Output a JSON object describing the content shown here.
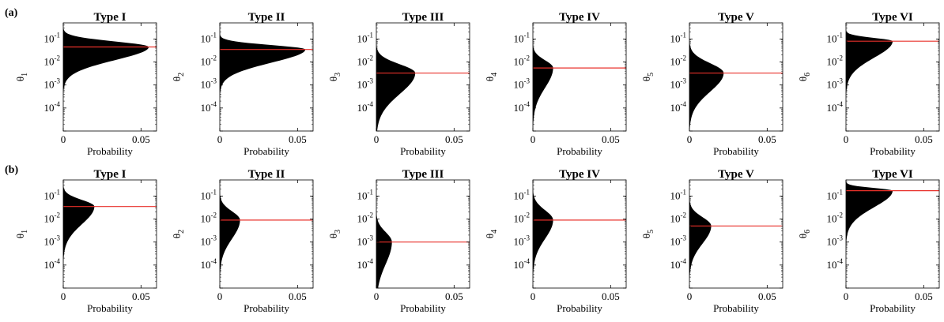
{
  "row_labels": [
    "(a)",
    "(b)"
  ],
  "chart_data": [
    {
      "row": "(a)",
      "type": "area",
      "title": "Type I",
      "ylabel_base": "θ",
      "ylabel_sub": "1",
      "xlabel": "Probability",
      "yscale": "log",
      "ylim": [
        1e-05,
        0.5
      ],
      "xlim": [
        0,
        0.06
      ],
      "xticks": [
        "0",
        "0.05"
      ],
      "yticks": [
        "10-1",
        "10-2",
        "10-3",
        "10-4"
      ],
      "mode": 0.045,
      "peak_probability": 0.055,
      "spread_decades": [
        1.2,
        0.5
      ],
      "marker_color": "#e8312a",
      "fill_color": "#000000"
    },
    {
      "row": "(a)",
      "type": "area",
      "title": "Type II",
      "ylabel_base": "θ",
      "ylabel_sub": "2",
      "xlabel": "Probability",
      "yscale": "log",
      "ylim": [
        1e-05,
        0.5
      ],
      "xlim": [
        0,
        0.06
      ],
      "xticks": [
        "0",
        "0.05"
      ],
      "yticks": [
        "10-1",
        "10-2",
        "10-3",
        "10-4"
      ],
      "mode": 0.035,
      "peak_probability": 0.055,
      "spread_decades": [
        1.2,
        0.4
      ],
      "marker_color": "#e8312a",
      "fill_color": "#000000"
    },
    {
      "row": "(a)",
      "type": "area",
      "title": "Type III",
      "ylabel_base": "θ",
      "ylabel_sub": "3",
      "xlabel": "Probability",
      "yscale": "log",
      "ylim": [
        1e-05,
        0.5
      ],
      "xlim": [
        0,
        0.06
      ],
      "xticks": [
        "0",
        "0.05"
      ],
      "yticks": [
        "10-1",
        "10-2",
        "10-3",
        "10-4"
      ],
      "mode": 0.0033,
      "peak_probability": 0.025,
      "spread_decades": [
        1.9,
        0.8
      ],
      "marker_color": "#e8312a",
      "fill_color": "#000000"
    },
    {
      "row": "(a)",
      "type": "area",
      "title": "Type IV",
      "ylabel_base": "θ",
      "ylabel_sub": "4",
      "xlabel": "Probability",
      "yscale": "log",
      "ylim": [
        1e-05,
        0.5
      ],
      "xlim": [
        0,
        0.06
      ],
      "xticks": [
        "0",
        "0.05"
      ],
      "yticks": [
        "10-1",
        "10-2",
        "10-3",
        "10-4"
      ],
      "mode": 0.0055,
      "peak_probability": 0.013,
      "spread_decades": [
        1.8,
        0.7
      ],
      "marker_color": "#e8312a",
      "fill_color": "#000000"
    },
    {
      "row": "(a)",
      "type": "area",
      "title": "Type V",
      "ylabel_base": "θ",
      "ylabel_sub": "5",
      "xlabel": "Probability",
      "yscale": "log",
      "ylim": [
        1e-05,
        0.5
      ],
      "xlim": [
        0,
        0.06
      ],
      "xticks": [
        "0",
        "0.05"
      ],
      "yticks": [
        "10-1",
        "10-2",
        "10-3",
        "10-4"
      ],
      "mode": 0.0033,
      "peak_probability": 0.022,
      "spread_decades": [
        1.7,
        0.9
      ],
      "marker_color": "#e8312a",
      "fill_color": "#000000"
    },
    {
      "row": "(a)",
      "type": "area",
      "title": "Type VI",
      "ylabel_base": "θ",
      "ylabel_sub": "6",
      "xlabel": "Probability",
      "yscale": "log",
      "ylim": [
        1e-05,
        0.5
      ],
      "xlim": [
        0,
        0.06
      ],
      "xticks": [
        "0",
        "0.05"
      ],
      "yticks": [
        "10-1",
        "10-2",
        "10-3",
        "10-4"
      ],
      "mode": 0.08,
      "peak_probability": 0.03,
      "spread_decades": [
        1.5,
        0.3
      ],
      "marker_color": "#e8312a",
      "fill_color": "#000000"
    },
    {
      "row": "(b)",
      "type": "area",
      "title": "Type I",
      "ylabel_base": "θ",
      "ylabel_sub": "1",
      "xlabel": "Probability",
      "yscale": "log",
      "ylim": [
        1e-05,
        0.5
      ],
      "xlim": [
        0,
        0.06
      ],
      "xticks": [
        "0",
        "0.05"
      ],
      "yticks": [
        "10-1",
        "10-2",
        "10-3",
        "10-4"
      ],
      "mode": 0.035,
      "peak_probability": 0.02,
      "spread_decades": [
        1.6,
        0.6
      ],
      "marker_color": "#e8312a",
      "fill_color": "#000000"
    },
    {
      "row": "(b)",
      "type": "area",
      "title": "Type II",
      "ylabel_base": "θ",
      "ylabel_sub": "2",
      "xlabel": "Probability",
      "yscale": "log",
      "ylim": [
        1e-05,
        0.5
      ],
      "xlim": [
        0,
        0.06
      ],
      "xticks": [
        "0",
        "0.05"
      ],
      "yticks": [
        "10-1",
        "10-2",
        "10-3",
        "10-4"
      ],
      "mode": 0.009,
      "peak_probability": 0.013,
      "spread_decades": [
        1.7,
        0.8
      ],
      "marker_color": "#e8312a",
      "fill_color": "#000000"
    },
    {
      "row": "(b)",
      "type": "area",
      "title": "Type III",
      "ylabel_base": "θ",
      "ylabel_sub": "3",
      "xlabel": "Probability",
      "yscale": "log",
      "ylim": [
        1e-05,
        0.5
      ],
      "xlim": [
        0,
        0.06
      ],
      "xticks": [
        "0",
        "0.05"
      ],
      "yticks": [
        "10-1",
        "10-2",
        "10-3",
        "10-4"
      ],
      "mode": 0.001,
      "peak_probability": 0.01,
      "spread_decades": [
        2.0,
        0.9
      ],
      "marker_color": "#e8312a",
      "fill_color": "#000000"
    },
    {
      "row": "(b)",
      "type": "area",
      "title": "Type IV",
      "ylabel_base": "θ",
      "ylabel_sub": "4",
      "xlabel": "Probability",
      "yscale": "log",
      "ylim": [
        1e-05,
        0.5
      ],
      "xlim": [
        0,
        0.06
      ],
      "xticks": [
        "0",
        "0.05"
      ],
      "yticks": [
        "10-1",
        "10-2",
        "10-3",
        "10-4"
      ],
      "mode": 0.009,
      "peak_probability": 0.013,
      "spread_decades": [
        1.7,
        0.9
      ],
      "marker_color": "#e8312a",
      "fill_color": "#000000"
    },
    {
      "row": "(b)",
      "type": "area",
      "title": "Type V",
      "ylabel_base": "θ",
      "ylabel_sub": "5",
      "xlabel": "Probability",
      "yscale": "log",
      "ylim": [
        1e-05,
        0.5
      ],
      "xlim": [
        0,
        0.06
      ],
      "xticks": [
        "0",
        "0.05"
      ],
      "yticks": [
        "10-1",
        "10-2",
        "10-3",
        "10-4"
      ],
      "mode": 0.005,
      "peak_probability": 0.014,
      "spread_decades": [
        1.6,
        0.8
      ],
      "marker_color": "#e8312a",
      "fill_color": "#000000"
    },
    {
      "row": "(b)",
      "type": "area",
      "title": "Type VI",
      "ylabel_base": "θ",
      "ylabel_sub": "6",
      "xlabel": "Probability",
      "yscale": "log",
      "ylim": [
        1e-05,
        0.5
      ],
      "xlim": [
        0,
        0.06
      ],
      "xticks": [
        "0",
        "0.05"
      ],
      "yticks": [
        "10-1",
        "10-2",
        "10-3",
        "10-4"
      ],
      "mode": 0.17,
      "peak_probability": 0.03,
      "spread_decades": [
        1.5,
        0.25
      ],
      "marker_color": "#e8312a",
      "fill_color": "#000000"
    }
  ]
}
